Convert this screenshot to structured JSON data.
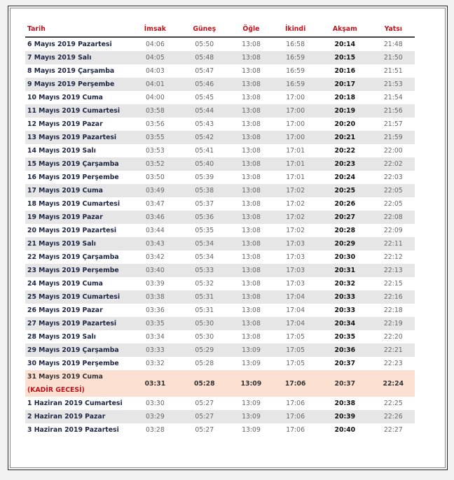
{
  "headers": [
    "Tarih",
    "İmsak",
    "Güneş",
    "Öğle",
    "İkindi",
    "Akşam",
    "Yatsı"
  ],
  "rows": [
    [
      "6 Mayıs 2019 Pazartesi",
      "04:06",
      "05:50",
      "13:08",
      "16:58",
      "20:14",
      "21:48"
    ],
    [
      "7 Mayıs 2019 Salı",
      "04:05",
      "05:48",
      "13:08",
      "16:59",
      "20:15",
      "21:50"
    ],
    [
      "8 Mayıs 2019 Çarşamba",
      "04:03",
      "05:47",
      "13:08",
      "16:59",
      "20:16",
      "21:51"
    ],
    [
      "9 Mayıs 2019 Perşembe",
      "04:01",
      "05:46",
      "13:08",
      "16:59",
      "20:17",
      "21:53"
    ],
    [
      "10 Mayıs 2019 Cuma",
      "04:00",
      "05:45",
      "13:08",
      "17:00",
      "20:18",
      "21:54"
    ],
    [
      "11 Mayıs 2019 Cumartesi",
      "03:58",
      "05:44",
      "13:08",
      "17:00",
      "20:19",
      "21:56"
    ],
    [
      "12 Mayıs 2019 Pazar",
      "03:56",
      "05:43",
      "13:08",
      "17:00",
      "20:20",
      "21:57"
    ],
    [
      "13 Mayıs 2019 Pazartesi",
      "03:55",
      "05:42",
      "13:08",
      "17:00",
      "20:21",
      "21:59"
    ],
    [
      "14 Mayıs 2019 Salı",
      "03:53",
      "05:41",
      "13:08",
      "17:01",
      "20:22",
      "22:00"
    ],
    [
      "15 Mayıs 2019 Çarşamba",
      "03:52",
      "05:40",
      "13:08",
      "17:01",
      "20:23",
      "22:02"
    ],
    [
      "16 Mayıs 2019 Perşembe",
      "03:50",
      "05:39",
      "13:08",
      "17:01",
      "20:24",
      "22:03"
    ],
    [
      "17 Mayıs 2019 Cuma",
      "03:49",
      "05:38",
      "13:08",
      "17:02",
      "20:25",
      "22:05"
    ],
    [
      "18 Mayıs 2019 Cumartesi",
      "03:47",
      "05:37",
      "13:08",
      "17:02",
      "20:26",
      "22:05"
    ],
    [
      "19 Mayıs 2019 Pazar",
      "03:46",
      "05:36",
      "13:08",
      "17:02",
      "20:27",
      "22:08"
    ],
    [
      "20 Mayıs 2019 Pazartesi",
      "03:44",
      "05:35",
      "13:08",
      "17:02",
      "20:28",
      "22:09"
    ],
    [
      "21 Mayıs 2019 Salı",
      "03:43",
      "05:34",
      "13:08",
      "17:03",
      "20:29",
      "22:11"
    ],
    [
      "22 Mayıs 2019 Çarşamba",
      "03:42",
      "05:34",
      "13:08",
      "17:03",
      "20:30",
      "22:12"
    ],
    [
      "23 Mayıs 2019 Perşembe",
      "03:40",
      "05:33",
      "13:08",
      "17:03",
      "20:31",
      "22:13"
    ],
    [
      "24 Mayıs 2019 Cuma",
      "03:39",
      "05:32",
      "13:08",
      "17:03",
      "20:32",
      "22:15"
    ],
    [
      "25 Mayıs 2019 Cumartesi",
      "03:38",
      "05:31",
      "13:08",
      "17:04",
      "20:33",
      "22:16"
    ],
    [
      "26 Mayıs 2019 Pazar",
      "03:36",
      "05:31",
      "13:08",
      "17:04",
      "20:33",
      "22:18"
    ],
    [
      "27 Mayıs 2019 Pazartesi",
      "03:35",
      "05:30",
      "13:08",
      "17:04",
      "20:34",
      "22:19"
    ],
    [
      "28 Mayıs 2019 Salı",
      "03:34",
      "05:30",
      "13:08",
      "17:05",
      "20:35",
      "22:20"
    ],
    [
      "29 Mayıs 2019 Çarşamba",
      "03:33",
      "05:29",
      "13:09",
      "17:05",
      "20:36",
      "22:21"
    ],
    [
      "30 Mayıs 2019 Perşembe",
      "03:32",
      "05:28",
      "13:09",
      "17:05",
      "20:37",
      "22:23"
    ],
    [
      "31 Mayıs 2019 Cuma",
      "03:31",
      "05:28",
      "13:09",
      "17:06",
      "20:37",
      "22:24"
    ],
    [
      "1 Haziran 2019 Cumartesi",
      "03:30",
      "05:27",
      "13:09",
      "17:06",
      "20:38",
      "22:25"
    ],
    [
      "2 Haziran 2019 Pazar",
      "03:29",
      "05:27",
      "13:09",
      "17:06",
      "20:39",
      "22:26"
    ],
    [
      "3 Haziran 2019 Pazartesi",
      "03:28",
      "05:27",
      "13:09",
      "17:06",
      "20:40",
      "22:27"
    ]
  ],
  "highlight": {
    "row": 25,
    "note": "(KADİR GECESİ)",
    "color": "#fbe0d2"
  },
  "colors": {
    "header": "#c0121a",
    "stripe": "#e6e6e6"
  }
}
